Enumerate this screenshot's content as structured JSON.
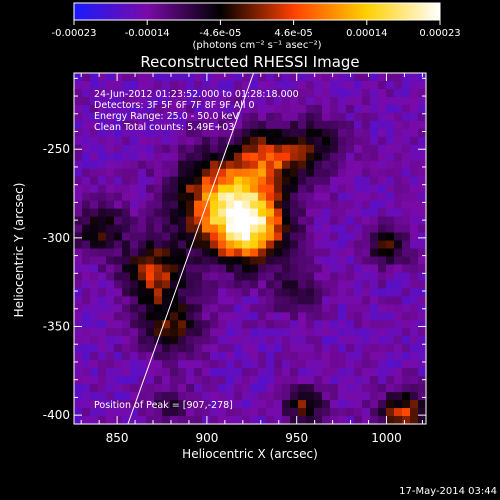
{
  "chart_data": {
    "type": "heatmap",
    "title": "Reconstructed RHESSI Image",
    "xlabel": "Heliocentric X (arcsec)",
    "ylabel": "Heliocentric Y (arcsec)",
    "xlim": [
      826,
      1022
    ],
    "ylim": [
      -405,
      -207
    ],
    "x_ticks": [
      850,
      900,
      950,
      1000
    ],
    "y_ticks": [
      -250,
      -300,
      -350,
      -400
    ],
    "colorbar": {
      "range": [
        -0.00023,
        0.00023
      ],
      "ticks": [
        "-0.00023",
        "-0.00014",
        "-4.6e-05",
        "4.6e-05",
        "0.00014",
        "0.00023"
      ],
      "unit_label": "(photons cm⁻² s⁻¹ asec⁻²)",
      "colors": [
        "#1a1aff",
        "#7a0aa8",
        "#000000",
        "#ff4000",
        "#ffd000",
        "#ffffff"
      ]
    },
    "annotations": [
      "24-Jun-2012 01:23:52.000 to 01:28:18.000",
      "Detectors: 3F 5F 6F 7F 8F 9F All 0",
      "Energy Range: 25.0 - 50.0 keV",
      "Clean     Total counts: 5.49E+03",
      "Position of Peak = [907,-278]"
    ],
    "peak": [
      907,
      -278
    ],
    "limb_line": [
      [
        856,
        -405
      ],
      [
        926,
        -207
      ]
    ],
    "bright_blobs": [
      {
        "x": 910,
        "y": -280,
        "amp": 1.0,
        "sigma": 20
      },
      {
        "x": 925,
        "y": -295,
        "amp": 0.85,
        "sigma": 14
      },
      {
        "x": 870,
        "y": -320,
        "amp": 0.75,
        "sigma": 12
      },
      {
        "x": 880,
        "y": -350,
        "amp": 0.6,
        "sigma": 12
      },
      {
        "x": 935,
        "y": -255,
        "amp": 0.6,
        "sigma": 12
      },
      {
        "x": 960,
        "y": -248,
        "amp": 0.45,
        "sigma": 12
      },
      {
        "x": 950,
        "y": -330,
        "amp": 0.35,
        "sigma": 10
      },
      {
        "x": 840,
        "y": -295,
        "amp": 0.55,
        "sigma": 10
      },
      {
        "x": 1000,
        "y": -305,
        "amp": 0.55,
        "sigma": 8
      },
      {
        "x": 1010,
        "y": -400,
        "amp": 0.75,
        "sigma": 10
      },
      {
        "x": 955,
        "y": -395,
        "amp": 0.6,
        "sigma": 8
      },
      {
        "x": 880,
        "y": -395,
        "amp": 0.35,
        "sigma": 8
      }
    ]
  },
  "footer": {
    "timestamp": "17-May-2014 03:44"
  }
}
